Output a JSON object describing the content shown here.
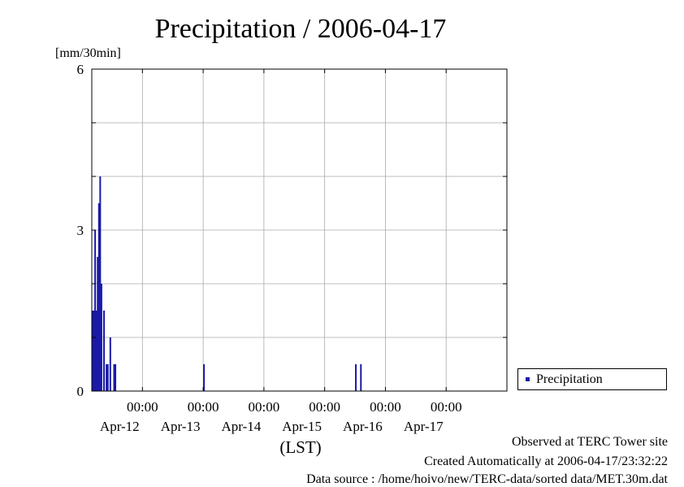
{
  "chart_data": {
    "type": "bar",
    "title": "Precipitation / 2006-04-17",
    "ylabel": "[mm/30min]",
    "xlabel": "(LST)",
    "ylim": [
      0,
      6
    ],
    "yticks": [
      0,
      3,
      6
    ],
    "xlim": [
      "2006-04-11 04:00",
      "2006-04-17 24:00"
    ],
    "x_ticks": [
      {
        "time": "00:00",
        "date": "Apr-12"
      },
      {
        "time": "00:00",
        "date": "Apr-13"
      },
      {
        "time": "00:00",
        "date": "Apr-14"
      },
      {
        "time": "00:00",
        "date": "Apr-15"
      },
      {
        "time": "00:00",
        "date": "Apr-16"
      },
      {
        "time": "00:00",
        "date": "Apr-17"
      }
    ],
    "grid": true,
    "legend_position": "bottom-right, outside plot",
    "series": [
      {
        "name": "Precipitation",
        "color": "#1a1aa8",
        "points": [
          {
            "x": "2006-04-11 04:00",
            "y": 1.5
          },
          {
            "x": "2006-04-11 04:30",
            "y": 1.5
          },
          {
            "x": "2006-04-11 05:00",
            "y": 3.0
          },
          {
            "x": "2006-04-11 05:30",
            "y": 1.5
          },
          {
            "x": "2006-04-11 06:00",
            "y": 2.5
          },
          {
            "x": "2006-04-11 06:30",
            "y": 3.5
          },
          {
            "x": "2006-04-11 07:00",
            "y": 4.0
          },
          {
            "x": "2006-04-11 07:30",
            "y": 2.0
          },
          {
            "x": "2006-04-11 08:30",
            "y": 1.5
          },
          {
            "x": "2006-04-11 09:30",
            "y": 0.5
          },
          {
            "x": "2006-04-11 10:00",
            "y": 0.5
          },
          {
            "x": "2006-04-11 11:00",
            "y": 1.0
          },
          {
            "x": "2006-04-11 12:30",
            "y": 0.5
          },
          {
            "x": "2006-04-11 13:00",
            "y": 0.5
          },
          {
            "x": "2006-04-13 00:00",
            "y": 0.5
          },
          {
            "x": "2006-04-15 12:00",
            "y": 0.5
          },
          {
            "x": "2006-04-15 14:00",
            "y": 0.5
          }
        ]
      }
    ]
  },
  "footer": {
    "observed": "Observed at TERC Tower site",
    "created": "Created Automatically at 2006-04-17/23:32:22",
    "source": "Data source : /home/hoivo/new/TERC-data/sorted  data/MET.30m.dat"
  }
}
